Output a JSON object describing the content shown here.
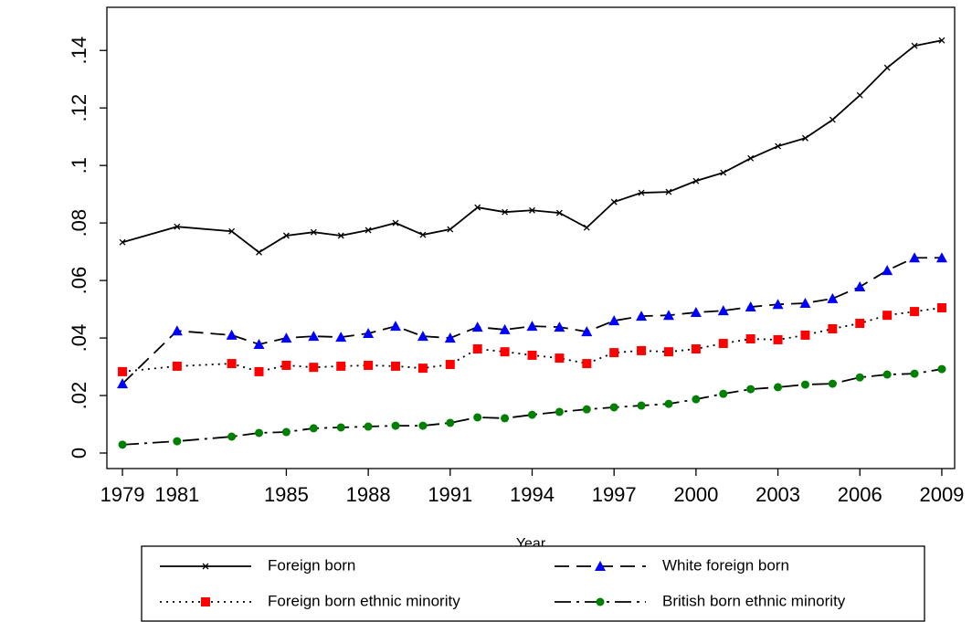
{
  "chart_data": {
    "type": "line",
    "x_label": "Year",
    "x": [
      1979,
      1981,
      1983,
      1984,
      1985,
      1986,
      1987,
      1988,
      1989,
      1990,
      1991,
      1992,
      1993,
      1994,
      1995,
      1996,
      1997,
      1998,
      1999,
      2000,
      2001,
      2002,
      2003,
      2004,
      2005,
      2006,
      2007,
      2008,
      2009
    ],
    "xlim": [
      1978.43,
      2009.47
    ],
    "xticks": [
      1979,
      1981,
      1985,
      1988,
      1991,
      1994,
      1997,
      2000,
      2003,
      2006,
      2009
    ],
    "ylim": [
      -0.0054,
      0.155
    ],
    "yticks": [
      0,
      {
        "value": 0.02,
        "label": ".02"
      },
      {
        "value": 0.04,
        "label": ".04"
      },
      {
        "value": 0.06,
        "label": ".06"
      },
      {
        "value": 0.08,
        "label": ".08"
      },
      {
        "value": 0.1,
        "label": ".1"
      },
      {
        "value": 0.12,
        "label": ".12"
      },
      {
        "value": 0.14,
        "label": ".14"
      }
    ],
    "grid": false,
    "legend": "bottom",
    "series": [
      {
        "name": "Foreign born",
        "color": "#000000",
        "dash": "solid",
        "marker": "cross",
        "values": [
          0.0733,
          0.0787,
          0.0771,
          0.0698,
          0.0756,
          0.0768,
          0.0756,
          0.0775,
          0.08,
          0.0759,
          0.0778,
          0.0854,
          0.0838,
          0.0844,
          0.0835,
          0.0784,
          0.0873,
          0.0905,
          0.0908,
          0.0946,
          0.0975,
          0.1025,
          0.1067,
          0.1095,
          0.1159,
          0.1244,
          0.134,
          0.1416,
          0.1435
        ]
      },
      {
        "name": "White foreign born",
        "color": "#0000ff",
        "line_color": "#000000",
        "dash": "dashed",
        "marker": "triangle",
        "values": [
          0.0241,
          0.0425,
          0.041,
          0.0378,
          0.04,
          0.0406,
          0.0403,
          0.0416,
          0.0441,
          0.0406,
          0.04,
          0.0438,
          0.0429,
          0.0441,
          0.0438,
          0.0422,
          0.046,
          0.0476,
          0.0479,
          0.0489,
          0.0495,
          0.0508,
          0.0517,
          0.0521,
          0.0537,
          0.0578,
          0.0635,
          0.0679,
          0.0679
        ]
      },
      {
        "name": "Foreign born ethnic minority",
        "color": "#ff0000",
        "line_color": "#000000",
        "dash": "dotted",
        "marker": "square",
        "values": [
          0.0283,
          0.0302,
          0.0311,
          0.0283,
          0.0305,
          0.0298,
          0.0302,
          0.0305,
          0.0302,
          0.0295,
          0.0308,
          0.0362,
          0.0352,
          0.034,
          0.033,
          0.0311,
          0.0349,
          0.0356,
          0.0352,
          0.0362,
          0.0381,
          0.0397,
          0.0394,
          0.041,
          0.0432,
          0.0451,
          0.0479,
          0.0492,
          0.0505
        ]
      },
      {
        "name": "British born ethnic minority",
        "color": "#008000",
        "line_color": "#000000",
        "dash": "dashdot",
        "marker": "circle",
        "values": [
          0.0029,
          0.0041,
          0.0057,
          0.007,
          0.0073,
          0.0086,
          0.0089,
          0.0092,
          0.0095,
          0.0095,
          0.0105,
          0.0124,
          0.0121,
          0.0133,
          0.0143,
          0.0152,
          0.0159,
          0.0165,
          0.0171,
          0.0187,
          0.0206,
          0.0222,
          0.0229,
          0.0238,
          0.0241,
          0.0263,
          0.0273,
          0.0276,
          0.0292
        ]
      }
    ]
  }
}
